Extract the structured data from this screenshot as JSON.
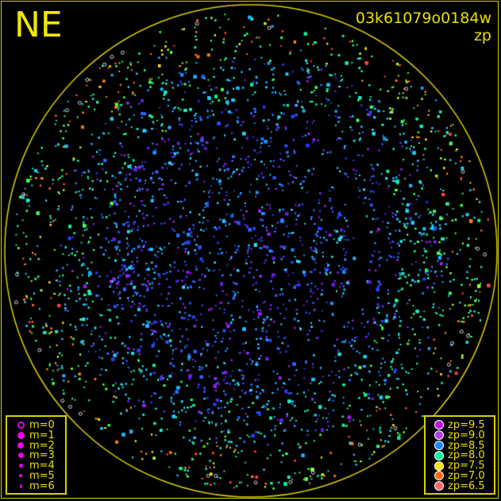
{
  "direction_label": "NE",
  "title": "03k61079o0184w",
  "subtitle": "zp",
  "colors": {
    "frame": "#d8d000",
    "text": "#e8e000",
    "background": "#000000"
  },
  "magnitude_legend": [
    {
      "label": "m=0",
      "style": "ring"
    },
    {
      "label": "m=1"
    },
    {
      "label": "m=2"
    },
    {
      "label": "m=3"
    },
    {
      "label": "m=4"
    },
    {
      "label": "m=5"
    },
    {
      "label": "m=6"
    }
  ],
  "zp_legend": [
    {
      "label": "zp=9.5",
      "color": "#c010f0"
    },
    {
      "label": "zp=9.0",
      "color": "#b040e0"
    },
    {
      "label": "zp=8.5",
      "color": "#2088ff"
    },
    {
      "label": "zp=8.0",
      "color": "#10f0a0"
    },
    {
      "label": "zp=7.5",
      "color": "#ffe010"
    },
    {
      "label": "zp=7.0",
      "color": "#ff6a10"
    },
    {
      "label": "zp=6.5",
      "color": "#ff6868"
    }
  ]
}
